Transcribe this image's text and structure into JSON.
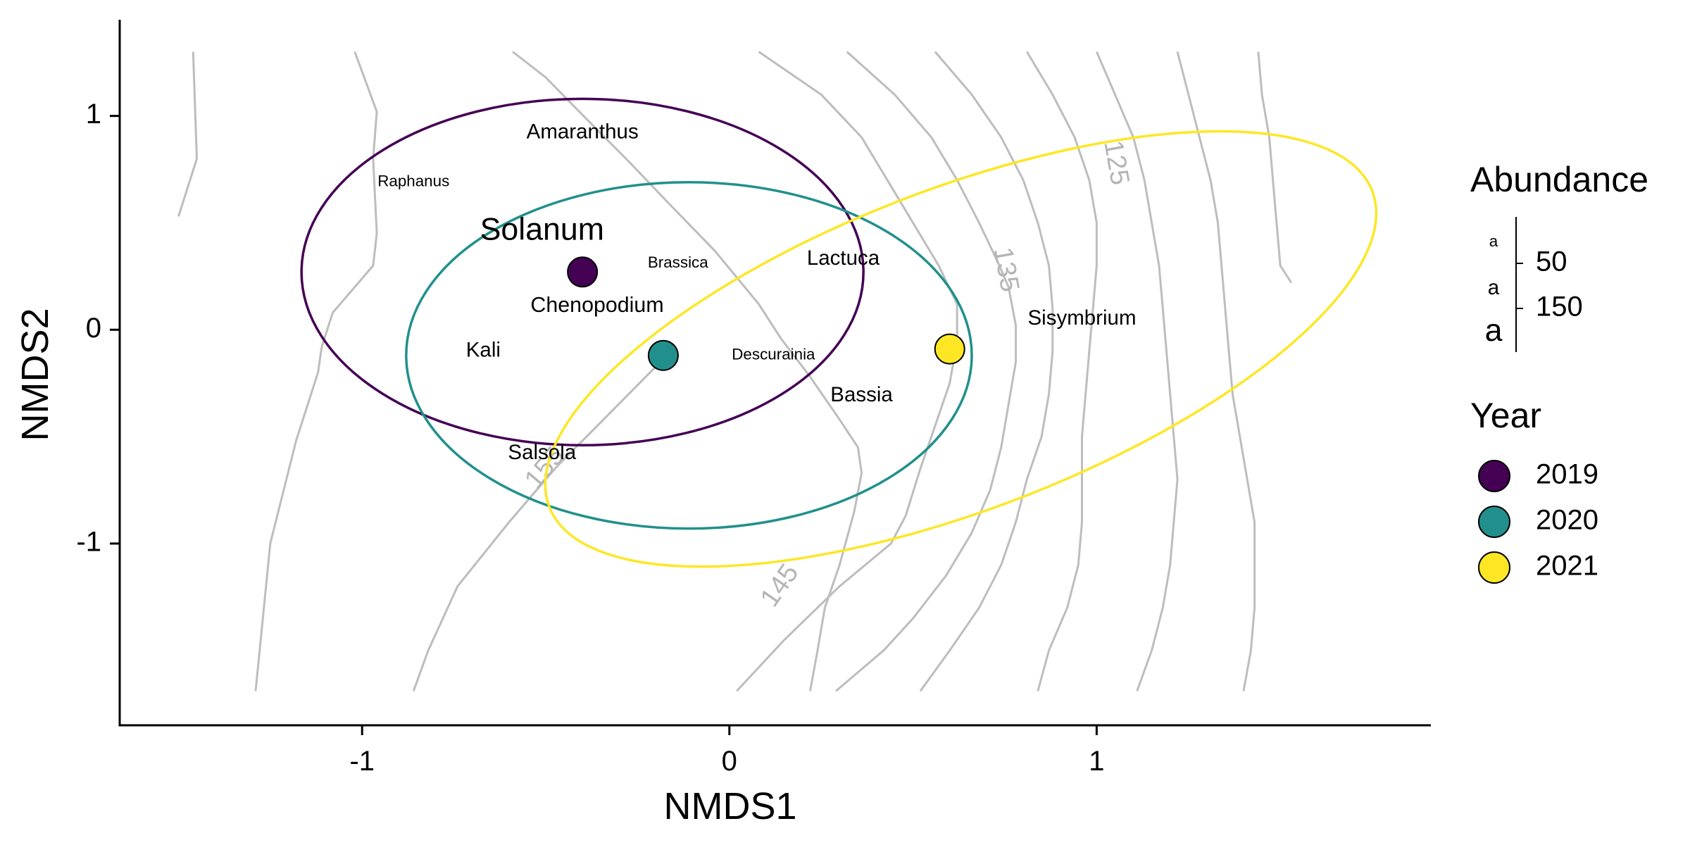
{
  "chart_data": {
    "type": "scatter",
    "xlabel": "NMDS1",
    "ylabel": "NMDS2",
    "xlim": [
      -1.66,
      1.91
    ],
    "ylim": [
      -1.85,
      1.45
    ],
    "x_ticks": [
      -1,
      0,
      1
    ],
    "y_ticks": [
      -1,
      0,
      1
    ],
    "x_tick_labels": [
      "-1",
      "0",
      "1"
    ],
    "y_tick_labels": [
      "-1",
      "0",
      "1"
    ],
    "grid": false,
    "legend_position": "right",
    "centroids": [
      {
        "year": "2019",
        "x": -0.4,
        "y": 0.27,
        "color": "#440154"
      },
      {
        "year": "2020",
        "x": -0.18,
        "y": -0.12,
        "color": "#21908C"
      },
      {
        "year": "2021",
        "x": 0.6,
        "y": -0.09,
        "color": "#FDE725"
      }
    ],
    "ellipses": [
      {
        "year": "2019",
        "cx": -0.4,
        "cy": 0.27,
        "rx": 0.765,
        "ry": 0.81,
        "angle": 0,
        "color": "#440154"
      },
      {
        "year": "2020",
        "cx": -0.11,
        "cy": -0.12,
        "rx": 0.77,
        "ry": 0.81,
        "angle": 0,
        "color": "#21908C"
      },
      {
        "year": "2021",
        "cx": 0.63,
        "cy": -0.09,
        "rx": 1.2,
        "ry": 0.75,
        "angle": 21,
        "color": "#FDE725"
      }
    ],
    "species": [
      {
        "name": "Amaranthus",
        "x": -0.4,
        "y": 0.92,
        "abundance": 100
      },
      {
        "name": "Raphanus",
        "x": -0.86,
        "y": 0.69,
        "abundance": 25
      },
      {
        "name": "Solanum",
        "x": -0.51,
        "y": 0.46,
        "abundance": 260
      },
      {
        "name": "Brassica",
        "x": -0.14,
        "y": 0.31,
        "abundance": 25
      },
      {
        "name": "Lactuca",
        "x": 0.31,
        "y": 0.33,
        "abundance": 100
      },
      {
        "name": "Chenopodium",
        "x": -0.36,
        "y": 0.11,
        "abundance": 110
      },
      {
        "name": "Kali",
        "x": -0.67,
        "y": -0.1,
        "abundance": 100
      },
      {
        "name": "Descurainia",
        "x": 0.12,
        "y": -0.12,
        "abundance": 25
      },
      {
        "name": "Sisymbrium",
        "x": 0.96,
        "y": 0.05,
        "abundance": 100
      },
      {
        "name": "Bassia",
        "x": 0.36,
        "y": -0.31,
        "abundance": 100
      },
      {
        "name": "Salsola",
        "x": -0.51,
        "y": -0.58,
        "abundance": 100
      }
    ],
    "contours": [
      {
        "points": [
          [
            -1.46,
            1.3
          ],
          [
            -1.45,
            0.8
          ],
          [
            -1.5,
            0.53
          ]
        ]
      },
      {
        "points": [
          [
            -1.02,
            1.3
          ],
          [
            -0.96,
            1.02
          ],
          [
            -0.97,
            0.8
          ],
          [
            -0.96,
            0.45
          ],
          [
            -0.97,
            0.3
          ],
          [
            -1.08,
            0.08
          ],
          [
            -1.11,
            -0.08
          ],
          [
            -1.12,
            -0.2
          ],
          [
            -1.18,
            -0.52
          ],
          [
            -1.25,
            -1.0
          ],
          [
            -1.29,
            -1.69
          ]
        ]
      },
      {
        "points": [
          [
            -0.59,
            1.3
          ],
          [
            -0.5,
            1.18
          ],
          [
            -0.38,
            0.97
          ],
          [
            -0.27,
            0.78
          ],
          [
            -0.17,
            0.6
          ],
          [
            -0.04,
            0.37
          ],
          [
            0.08,
            0.12
          ],
          [
            0.14,
            -0.04
          ],
          [
            0.22,
            -0.22
          ],
          [
            0.3,
            -0.42
          ],
          [
            0.35,
            -0.55
          ],
          [
            0.36,
            -0.67
          ],
          [
            0.34,
            -0.85
          ],
          [
            0.3,
            -1.1
          ],
          [
            0.26,
            -1.3
          ],
          [
            0.24,
            -1.5
          ],
          [
            0.22,
            -1.69
          ]
        ]
      },
      {
        "points": [
          [
            0.08,
            1.3
          ],
          [
            0.25,
            1.1
          ],
          [
            0.36,
            0.9
          ],
          [
            0.43,
            0.7
          ],
          [
            0.5,
            0.5
          ],
          [
            0.57,
            0.3
          ],
          [
            0.62,
            0.12
          ],
          [
            0.62,
            -0.05
          ],
          [
            0.6,
            -0.25
          ],
          [
            0.56,
            -0.45
          ],
          [
            0.52,
            -0.65
          ],
          [
            0.48,
            -0.87
          ],
          [
            0.44,
            -1.0
          ],
          [
            0.3,
            -1.2
          ],
          [
            0.15,
            -1.45
          ],
          [
            0.02,
            -1.69
          ]
        ]
      },
      {
        "points": [
          [
            0.32,
            1.3
          ],
          [
            0.45,
            1.1
          ],
          [
            0.55,
            0.9
          ],
          [
            0.62,
            0.7
          ],
          [
            0.68,
            0.5
          ],
          [
            0.73,
            0.32
          ],
          [
            0.76,
            0.2
          ],
          [
            0.78,
            0.02
          ],
          [
            0.78,
            -0.15
          ],
          [
            0.76,
            -0.35
          ],
          [
            0.74,
            -0.55
          ],
          [
            0.71,
            -0.75
          ],
          [
            0.66,
            -0.95
          ],
          [
            0.59,
            -1.15
          ],
          [
            0.5,
            -1.35
          ],
          [
            0.42,
            -1.5
          ],
          [
            0.29,
            -1.69
          ]
        ]
      },
      {
        "points": [
          [
            0.56,
            1.3
          ],
          [
            0.66,
            1.1
          ],
          [
            0.74,
            0.9
          ],
          [
            0.8,
            0.7
          ],
          [
            0.84,
            0.5
          ],
          [
            0.87,
            0.3
          ],
          [
            0.88,
            0.1
          ],
          [
            0.88,
            -0.1
          ],
          [
            0.87,
            -0.3
          ],
          [
            0.85,
            -0.5
          ],
          [
            0.81,
            -0.7
          ],
          [
            0.78,
            -0.9
          ],
          [
            0.74,
            -1.1
          ],
          [
            0.68,
            -1.3
          ],
          [
            0.6,
            -1.5
          ],
          [
            0.52,
            -1.69
          ]
        ]
      },
      {
        "points": [
          [
            0.81,
            1.3
          ],
          [
            0.88,
            1.1
          ],
          [
            0.94,
            0.9
          ],
          [
            0.98,
            0.7
          ],
          [
            1.0,
            0.5
          ],
          [
            1.0,
            0.3
          ],
          [
            0.99,
            0.1
          ],
          [
            0.98,
            -0.1
          ],
          [
            0.97,
            -0.3
          ],
          [
            0.96,
            -0.5
          ],
          [
            0.96,
            -0.7
          ],
          [
            0.96,
            -0.9
          ],
          [
            0.95,
            -1.1
          ],
          [
            0.92,
            -1.3
          ],
          [
            0.87,
            -1.5
          ],
          [
            0.84,
            -1.69
          ]
        ]
      },
      {
        "points": [
          [
            1.0,
            1.3
          ],
          [
            1.05,
            1.1
          ],
          [
            1.1,
            0.9
          ],
          [
            1.13,
            0.7
          ],
          [
            1.15,
            0.5
          ],
          [
            1.17,
            0.3
          ],
          [
            1.18,
            0.1
          ],
          [
            1.19,
            -0.1
          ],
          [
            1.2,
            -0.3
          ],
          [
            1.21,
            -0.5
          ],
          [
            1.22,
            -0.7
          ],
          [
            1.21,
            -0.9
          ],
          [
            1.2,
            -1.1
          ],
          [
            1.18,
            -1.3
          ],
          [
            1.15,
            -1.5
          ],
          [
            1.11,
            -1.69
          ]
        ]
      },
      {
        "points": [
          [
            1.22,
            1.3
          ],
          [
            1.25,
            1.1
          ],
          [
            1.28,
            0.9
          ],
          [
            1.31,
            0.7
          ],
          [
            1.33,
            0.5
          ],
          [
            1.34,
            0.3
          ],
          [
            1.35,
            0.1
          ],
          [
            1.36,
            -0.1
          ],
          [
            1.37,
            -0.3
          ],
          [
            1.39,
            -0.5
          ],
          [
            1.41,
            -0.7
          ],
          [
            1.43,
            -0.9
          ],
          [
            1.43,
            -1.1
          ],
          [
            1.43,
            -1.3
          ],
          [
            1.42,
            -1.5
          ],
          [
            1.4,
            -1.69
          ]
        ]
      },
      {
        "points": [
          [
            1.44,
            1.3
          ],
          [
            1.45,
            1.1
          ],
          [
            1.47,
            0.9
          ],
          [
            1.48,
            0.7
          ],
          [
            1.49,
            0.5
          ],
          [
            1.5,
            0.3
          ],
          [
            1.53,
            0.22
          ]
        ]
      },
      {
        "points": [
          [
            -0.86,
            -1.69
          ],
          [
            -0.82,
            -1.5
          ],
          [
            -0.74,
            -1.2
          ],
          [
            -0.6,
            -0.9
          ],
          [
            -0.47,
            -0.64
          ],
          [
            -0.36,
            -0.45
          ],
          [
            -0.17,
            -0.12
          ]
        ]
      }
    ],
    "contour_labels": [
      {
        "text": "125",
        "x": 1.05,
        "y": 0.78,
        "angle": 80
      },
      {
        "text": "135",
        "x": 0.75,
        "y": 0.28,
        "angle": 80
      },
      {
        "text": "145",
        "x": 0.14,
        "y": -1.2,
        "angle": -55
      },
      {
        "text": "155",
        "x": -0.5,
        "y": -0.65,
        "angle": -50
      }
    ]
  },
  "legend": {
    "abundance": {
      "title": "Abundance",
      "entries": [
        {
          "label": "50",
          "value": 50
        },
        {
          "label": "150",
          "value": 150
        }
      ],
      "key_symbols": [
        {
          "glyph": "a",
          "value": 25
        },
        {
          "glyph": "a",
          "value": 100
        },
        {
          "glyph": "a",
          "value": 260
        }
      ]
    },
    "year": {
      "title": "Year",
      "entries": [
        {
          "label": "2019",
          "color": "#440154"
        },
        {
          "label": "2020",
          "color": "#21908C"
        },
        {
          "label": "2021",
          "color": "#FDE725"
        }
      ]
    }
  }
}
